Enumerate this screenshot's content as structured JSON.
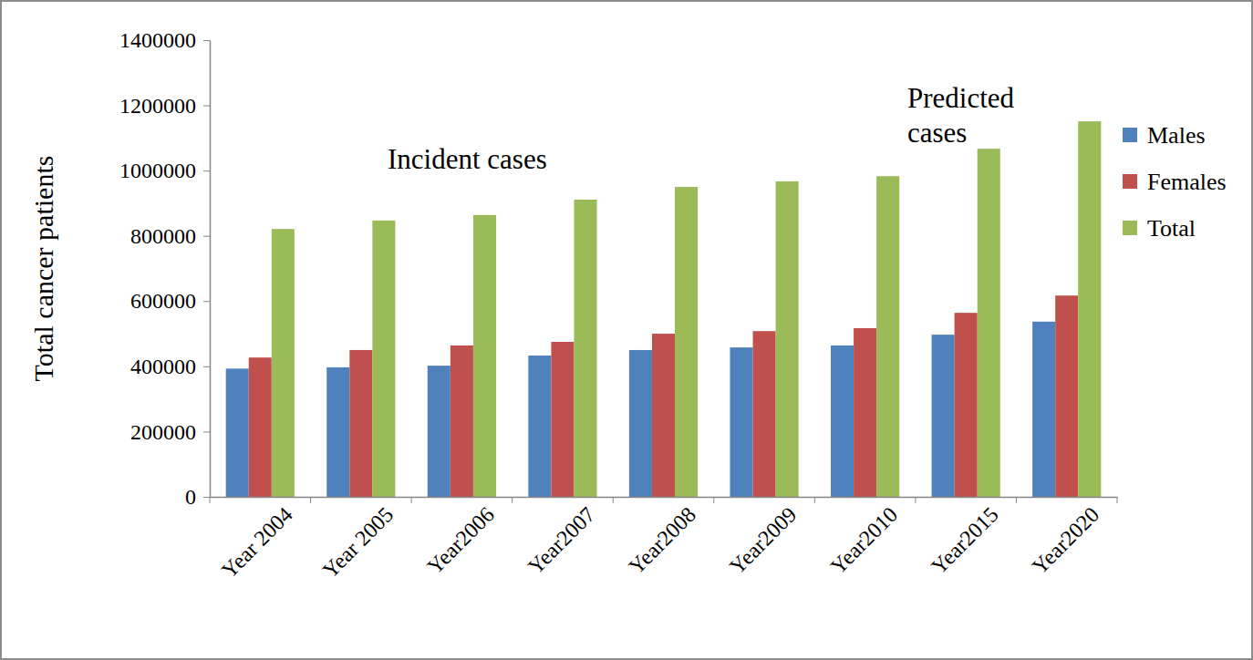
{
  "chart_data": {
    "type": "bar",
    "y_label": "Total cancer patients",
    "annotations": [
      "Incident cases",
      "Predicted cases"
    ],
    "categories": [
      "Year 2004",
      "Year 2005",
      "Year2006",
      "Year2007",
      "Year2008",
      "Year2009",
      "Year2010",
      "Year2015",
      "Year2020"
    ],
    "series": [
      {
        "name": "Males",
        "color": "#4f81bd",
        "values": [
          393000,
          397000,
          402000,
          433000,
          450000,
          458000,
          464000,
          497000,
          537000
        ]
      },
      {
        "name": "Females",
        "color": "#c0504d",
        "values": [
          427000,
          450000,
          464000,
          475000,
          500000,
          508000,
          517000,
          564000,
          617000
        ]
      },
      {
        "name": "Total",
        "color": "#9bbb59",
        "values": [
          821000,
          847000,
          864000,
          911000,
          950000,
          967000,
          983000,
          1067000,
          1151000
        ]
      }
    ],
    "ylim": [
      0,
      1400000
    ],
    "yticks": [
      0,
      200000,
      400000,
      600000,
      800000,
      1000000,
      1200000,
      1400000
    ],
    "grid": false,
    "legend": "right"
  }
}
